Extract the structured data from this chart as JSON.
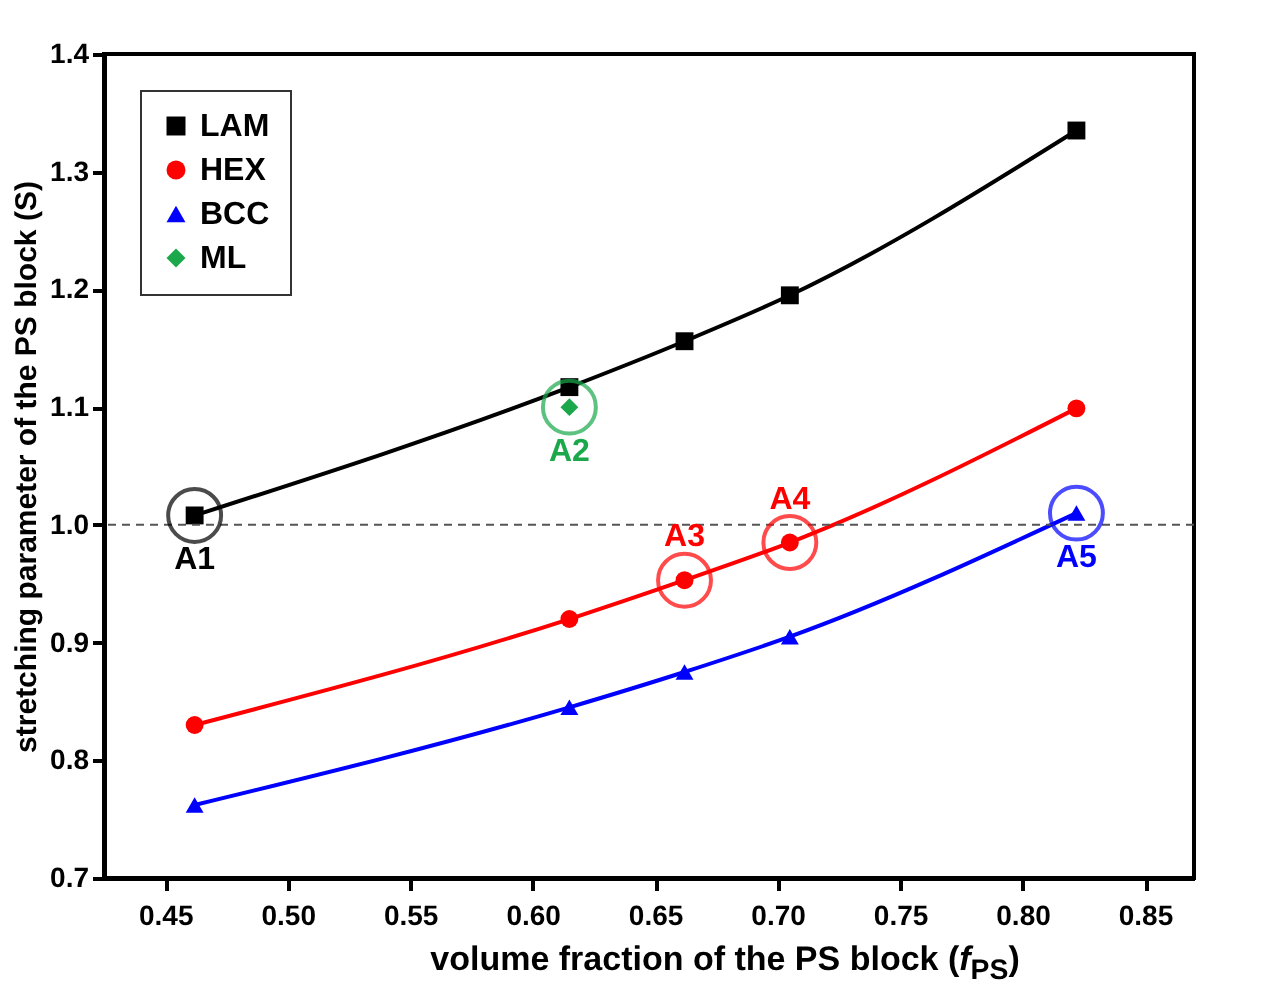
{
  "chart_data": {
    "type": "line",
    "xlabel": "volume fraction of the PS block (f$_{PS}$)",
    "ylabel": "stretching parameter of the PS block (S)",
    "x": [
      0.462,
      0.615,
      0.662,
      0.705,
      0.822
    ],
    "series": [
      {
        "name": "LAM",
        "color": "#000000",
        "marker": "square",
        "values": [
          1.008,
          1.117,
          1.156,
          1.195,
          1.335
        ]
      },
      {
        "name": "HEX",
        "color": "#ff0000",
        "marker": "circle",
        "values": [
          0.83,
          0.92,
          0.953,
          0.985,
          1.099
        ]
      },
      {
        "name": "BCC",
        "color": "#0000ff",
        "marker": "triangle",
        "values": [
          0.762,
          0.845,
          0.875,
          0.905,
          1.01
        ]
      },
      {
        "name": "ML",
        "color": "#1aa84a",
        "marker": "diamond",
        "type": "scatter",
        "x": [
          0.615
        ],
        "values": [
          1.1
        ]
      }
    ],
    "xlim": [
      0.425,
      0.87
    ],
    "xticks": [
      0.45,
      {
        "value": 0.5,
        "label": "0.50"
      },
      0.55,
      {
        "value": 0.6,
        "label": "0.60"
      },
      0.65,
      {
        "value": 0.7,
        "label": "0.70"
      },
      0.75,
      {
        "value": 0.8,
        "label": "0.80"
      },
      0.85
    ],
    "ylim": [
      0.7,
      1.4
    ],
    "yticks": [
      0.7,
      0.8,
      0.9,
      {
        "value": 1.0,
        "label": "1.0"
      },
      1.1,
      1.2,
      1.3,
      1.4
    ],
    "ref_lines": [
      {
        "axis": "y",
        "value": 1.0,
        "color": "#555555",
        "line_style": "dashed"
      }
    ],
    "annotations": [
      {
        "text": "A1",
        "x": 0.462,
        "y": 1.008
      },
      {
        "text": "A2",
        "x": 0.615,
        "y": 1.1
      },
      {
        "text": "A3",
        "x": 0.662,
        "y": 0.953
      },
      {
        "text": "A4",
        "x": 0.705,
        "y": 0.985
      },
      {
        "text": "A5",
        "x": 0.822,
        "y": 1.01
      }
    ],
    "grid": false,
    "legend": "top left"
  }
}
